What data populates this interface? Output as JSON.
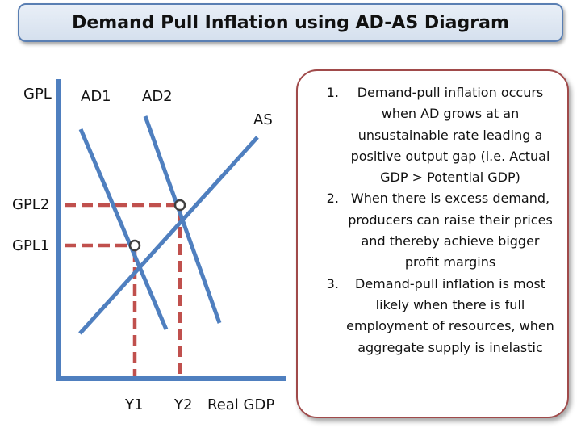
{
  "title": "Demand Pull Inflation using AD-AS Diagram",
  "labels": {
    "y_axis": "GPL",
    "ad1": "AD1",
    "ad2": "AD2",
    "as": "AS",
    "gpl2": "GPL2",
    "gpl1": "GPL1",
    "y1": "Y1",
    "y2": "Y2",
    "x_axis": "Real GDP"
  },
  "notes": [
    "Demand-pull inflation occurs when AD grows at an unsustainable rate leading a positive output gap (i.e. Actual GDP > Potential GDP)",
    "When there is excess demand, producers can raise their prices and thereby achieve bigger profit margins",
    "Demand-pull inflation is most likely when there is full employment of resources, when aggregate supply is inelastic"
  ],
  "colors": {
    "curve": "#4f7fbf",
    "guide": "#c0504d",
    "notes_border": "#a04a4a",
    "title_border": "#5a7fb3"
  }
}
